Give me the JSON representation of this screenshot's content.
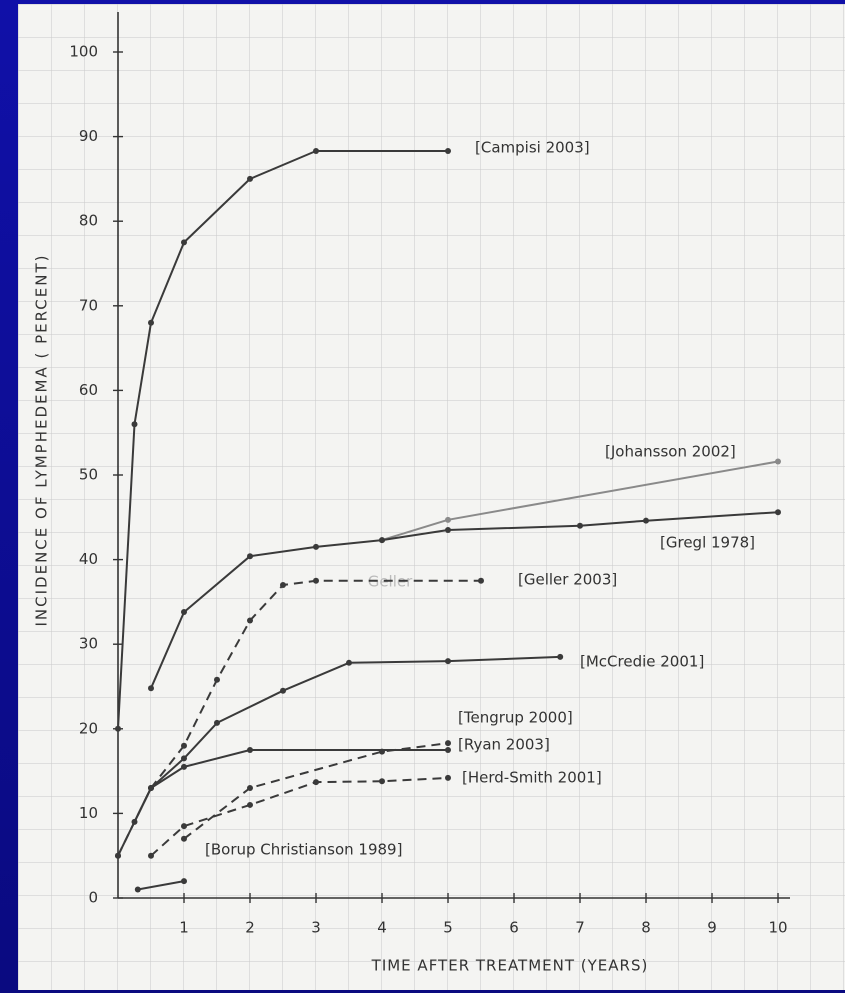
{
  "chart_data": {
    "type": "line",
    "y_label": "INCIDENCE OF LYMPHEDEMA ( PERCENT)",
    "x_label": "TIME AFTER TREATMENT (YEARS)",
    "xlim": [
      0,
      10.2
    ],
    "ylim": [
      0,
      100
    ],
    "xticks": [
      1,
      2,
      3,
      4,
      5,
      6,
      7,
      8,
      9,
      10
    ],
    "yticks": [
      0,
      10,
      20,
      30,
      40,
      50,
      60,
      70,
      80,
      90,
      100
    ],
    "grid": true,
    "annotations": [
      "Geller"
    ],
    "series": [
      {
        "name": "[Campisi 2003]",
        "color": "#3a3a3a",
        "dash": false,
        "x": [
          0,
          0.25,
          0.5,
          1,
          2,
          3,
          5
        ],
        "values": [
          20,
          56,
          68,
          77.5,
          85,
          88.3,
          88.3
        ]
      },
      {
        "name": "[Johansson 2002]",
        "color": "#8a8a8a",
        "dash": false,
        "x": [
          4,
          5,
          10
        ],
        "values": [
          42.3,
          44.7,
          51.6
        ]
      },
      {
        "name": "[Gregl 1978]",
        "color": "#3a3a3a",
        "dash": false,
        "x": [
          0.5,
          1,
          2,
          3,
          4,
          5,
          7,
          8,
          10
        ],
        "values": [
          24.8,
          33.8,
          40.4,
          41.5,
          42.3,
          43.5,
          44,
          44.6,
          45.6
        ]
      },
      {
        "name": "[Geller 2003]",
        "color": "#3a3a3a",
        "dash": true,
        "x": [
          0,
          0.5,
          1,
          1.5,
          2,
          2.5,
          3,
          5.5
        ],
        "values": [
          5,
          13,
          18,
          25.8,
          32.8,
          37,
          37.5,
          37.5
        ]
      },
      {
        "name": "[McCredie 2001]",
        "color": "#3a3a3a",
        "dash": false,
        "x": [
          0,
          0.5,
          1,
          1.5,
          2.5,
          3.5,
          5,
          6.7
        ],
        "values": [
          5,
          13,
          16.5,
          20.7,
          24.5,
          27.8,
          28,
          28.5
        ]
      },
      {
        "name": "[Tengrup 2000]",
        "color": "#3a3a3a",
        "dash": false,
        "x": [
          0.25,
          0.5,
          1,
          2,
          5
        ],
        "values": [
          9,
          13,
          15.5,
          17.5,
          17.5
        ]
      },
      {
        "name": "[Ryan 2003]",
        "color": "#3a3a3a",
        "dash": true,
        "x": [
          1,
          2,
          4,
          5
        ],
        "values": [
          7,
          13,
          17.3,
          18.3
        ]
      },
      {
        "name": "[Herd-Smith 2001]",
        "color": "#3a3a3a",
        "dash": true,
        "x": [
          0.5,
          1,
          2,
          3,
          4,
          5
        ],
        "values": [
          5,
          8.5,
          11,
          13.7,
          13.8,
          14.2
        ]
      },
      {
        "name": "[Borup Christianson 1989]",
        "color": "#3a3a3a",
        "dash": false,
        "x": [
          0.3,
          1
        ],
        "values": [
          1,
          2
        ]
      }
    ]
  }
}
